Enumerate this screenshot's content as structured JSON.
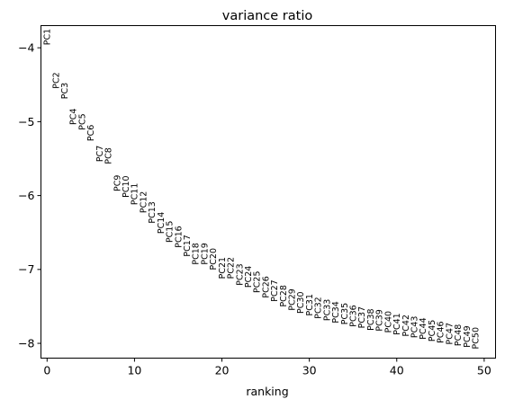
{
  "chart_data": {
    "type": "scatter",
    "title": "variance ratio",
    "xlabel": "ranking",
    "ylabel": "",
    "xlim": [
      -0.7,
      51.3
    ],
    "ylim": [
      -8.2,
      -3.7
    ],
    "xticks": [
      0,
      10,
      20,
      30,
      40,
      50
    ],
    "yticks": [
      -4,
      -5,
      -6,
      -7,
      -8
    ],
    "xtick_labels": [
      "0",
      "10",
      "20",
      "30",
      "40",
      "50"
    ],
    "ytick_labels": [
      "−4",
      "−5",
      "−6",
      "−7",
      "−8"
    ],
    "grid": false,
    "legend": "none",
    "point_labels": [
      "PC1",
      "PC2",
      "PC3",
      "PC4",
      "PC5",
      "PC6",
      "PC7",
      "PC8",
      "PC9",
      "PC10",
      "PC11",
      "PC12",
      "PC13",
      "PC14",
      "PC15",
      "PC16",
      "PC17",
      "PC18",
      "PC19",
      "PC20",
      "PC21",
      "PC22",
      "PC23",
      "PC24",
      "PC25",
      "PC26",
      "PC27",
      "PC28",
      "PC29",
      "PC30",
      "PC31",
      "PC32",
      "PC33",
      "PC34",
      "PC35",
      "PC36",
      "PC37",
      "PC38",
      "PC39",
      "PC40",
      "PC41",
      "PC42",
      "PC43",
      "PC44",
      "PC45",
      "PC46",
      "PC47",
      "PC48",
      "PC49",
      "PC50"
    ],
    "x": [
      0,
      1,
      2,
      3,
      4,
      5,
      6,
      7,
      8,
      9,
      10,
      11,
      12,
      13,
      14,
      15,
      16,
      17,
      18,
      19,
      20,
      21,
      22,
      23,
      24,
      25,
      26,
      27,
      28,
      29,
      30,
      31,
      32,
      33,
      34,
      35,
      36,
      37,
      38,
      39,
      40,
      41,
      42,
      43,
      44,
      45,
      46,
      47,
      48,
      49
    ],
    "y": [
      -3.74,
      -4.33,
      -4.47,
      -4.82,
      -4.89,
      -5.04,
      -5.32,
      -5.35,
      -5.72,
      -5.73,
      -5.83,
      -5.94,
      -6.08,
      -6.22,
      -6.34,
      -6.41,
      -6.53,
      -6.64,
      -6.64,
      -6.71,
      -6.83,
      -6.83,
      -6.92,
      -6.95,
      -7.02,
      -7.09,
      -7.14,
      -7.21,
      -7.26,
      -7.3,
      -7.33,
      -7.37,
      -7.4,
      -7.43,
      -7.45,
      -7.48,
      -7.5,
      -7.53,
      -7.54,
      -7.56,
      -7.59,
      -7.61,
      -7.63,
      -7.65,
      -7.68,
      -7.7,
      -7.72,
      -7.74,
      -7.76,
      -7.78
    ]
  }
}
